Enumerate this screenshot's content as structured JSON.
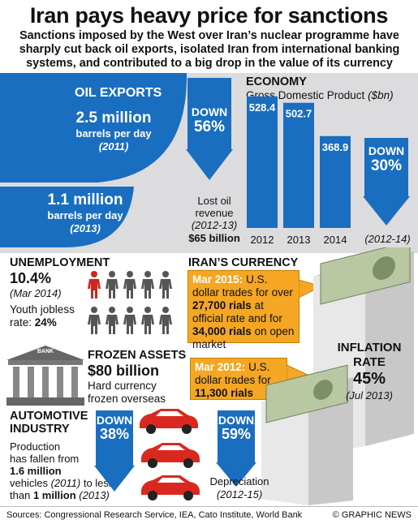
{
  "header": {
    "title": "Iran pays heavy price for sanctions",
    "subtitle": "Sanctions imposed by the West over Iran’s nuclear programme have sharply cut back oil exports, isolated Iran from international banking systems, and contributed to a big drop in the value of its currency"
  },
  "oil": {
    "heading": "OIL EXPORTS",
    "value_2011": "2.5 million",
    "unit_2011": "barrels per day",
    "year_2011": "(2011)",
    "value_2013": "1.1 million",
    "unit_2013": "barrels per day",
    "year_2013": "(2013)",
    "down_label": "DOWN",
    "down_pct": "56%",
    "lost_label": "Lost oil revenue",
    "lost_period": "(2012-13)",
    "lost_value": "$65 billion"
  },
  "economy": {
    "heading": "ECONOMY",
    "subheading": "Gross Domestic Product",
    "unit": "($bn)",
    "down_label": "DOWN",
    "down_pct": "30%",
    "down_period": "(2012-14)"
  },
  "chart_data": {
    "type": "bar",
    "title": "Gross Domestic Product ($bn)",
    "categories": [
      "2012",
      "2013",
      "2014"
    ],
    "values": [
      528.4,
      502.7,
      368.9
    ],
    "value_labels": [
      "528.4",
      "502.7",
      "368.9"
    ],
    "color": "#1a6ec0"
  },
  "unemployment": {
    "heading": "UNEMPLOYMENT",
    "value": "10.4%",
    "date": "(Mar 2014)",
    "youth_label": "Youth jobless rate:",
    "youth_value": "24%"
  },
  "currency": {
    "heading": "IRAN’S CURRENCY",
    "note1_date": "Mar 2015:",
    "note1_text_a": "U.S. dollar trades for",
    "note1_over": "over",
    "note1_rate": "27,700 rials",
    "note1_text_b": "at official rate and for",
    "note1_rate2": "34,000 rials",
    "note1_text_c": "on open market",
    "note2_date": "Mar 2012:",
    "note2_text": "U.S. dollar trades for",
    "note2_rate": "11,300 rials",
    "down_label": "DOWN",
    "down_pct": "59%",
    "dep_label": "Depreciation",
    "dep_period": "(2012-15)"
  },
  "inflation": {
    "heading_a": "INFLATION",
    "heading_b": "RATE",
    "value": "45%",
    "date": "(Jul 2013)"
  },
  "frozen": {
    "heading": "FROZEN ASSETS",
    "value": "$80 billion",
    "desc_a": "Hard currency",
    "desc_b": "frozen overseas",
    "bank_label": "BANK"
  },
  "auto": {
    "heading_a": "AUTOMOTIVE",
    "heading_b": "INDUSTRY",
    "down_label": "DOWN",
    "down_pct": "38%",
    "line1": "Production",
    "line2": "has fallen from",
    "from_value": "1.6 million",
    "line3": "vehicles",
    "from_year": "(2011)",
    "line4": "to less",
    "line5": "than",
    "to_value": "1 million",
    "to_year": "(2013)"
  },
  "footer": {
    "sources": "Sources: Congressional Research Service, IEA, Cato Institute, World Bank",
    "credit": "© GRAPHIC NEWS"
  },
  "colors": {
    "blue": "#1a6ec0",
    "orange": "#f5a623",
    "red": "#d0251c",
    "grey_band": "#dcdcde",
    "car_red": "#d9291f"
  }
}
